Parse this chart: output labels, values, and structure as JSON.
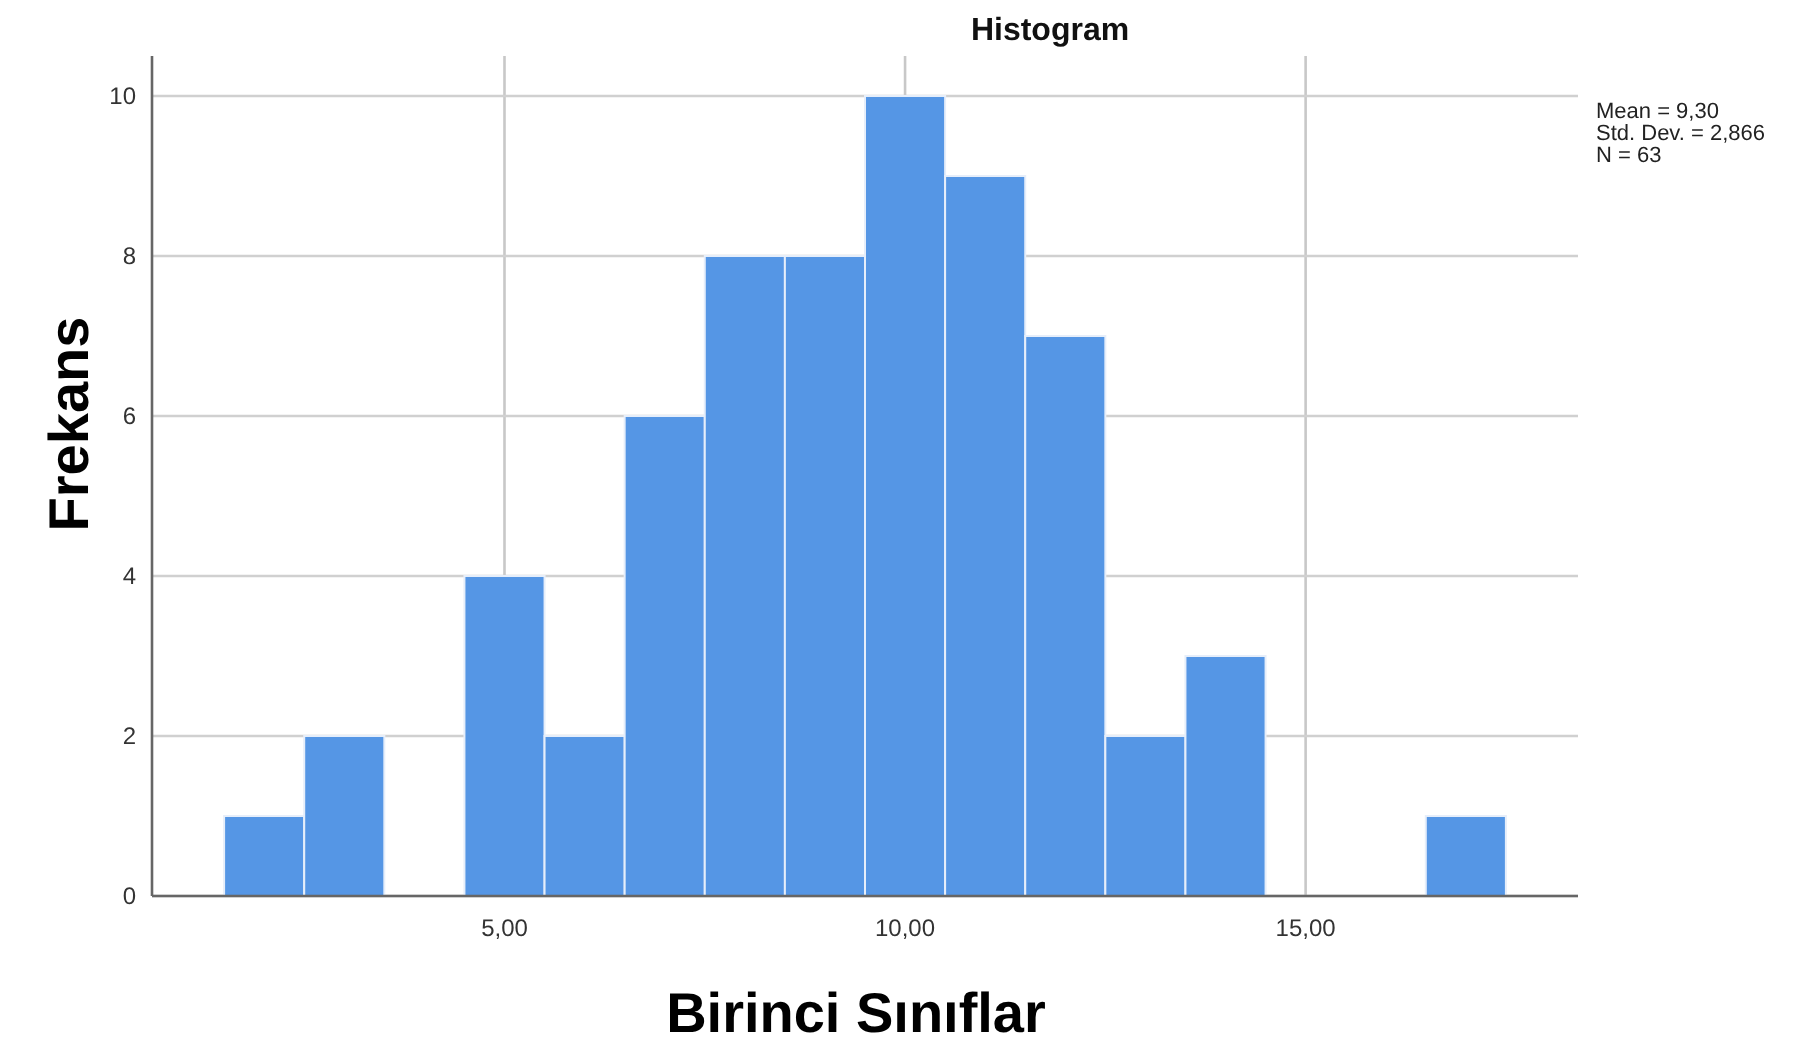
{
  "chart_data": {
    "type": "histogram",
    "title": "Histogram",
    "xlabel": "Birinci Sınıflar",
    "ylabel": "Frekans",
    "bins": [
      1.5,
      2.5,
      3.5,
      4.5,
      5.5,
      6.5,
      7.5,
      8.5,
      9.5,
      10.5,
      11.5,
      12.5,
      13.5,
      14.5,
      15.5,
      16.5,
      17.5
    ],
    "values": [
      1,
      2,
      0,
      4,
      2,
      6,
      8,
      8,
      10,
      9,
      7,
      2,
      3,
      0,
      0,
      1
    ],
    "color": "#5596e5",
    "xlim": [
      0.6,
      18.4
    ],
    "xticks": [
      {
        "value": 5,
        "label": "5,00"
      },
      {
        "value": 10,
        "label": "10,00"
      },
      {
        "value": 15,
        "label": "15,00"
      }
    ],
    "ylim": [
      0,
      10.5
    ],
    "yticks": [
      0,
      2,
      4,
      6,
      8,
      10
    ],
    "grid": true,
    "annotations": [
      "Mean = 9,30",
      "Std. Dev. = 2,866",
      "N = 63"
    ]
  }
}
